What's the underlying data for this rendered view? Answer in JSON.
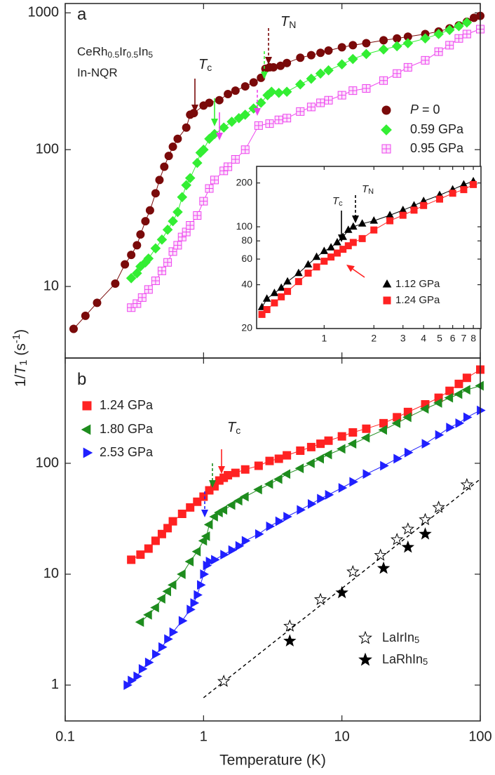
{
  "chart_data": [
    {
      "type": "scatter",
      "xscale": "log",
      "yscale": "log",
      "xlim": [
        0.1,
        100
      ],
      "ylim": [
        3,
        1170
      ],
      "xticks": [
        0.1,
        1,
        10,
        100
      ],
      "yticks": [
        10,
        100,
        1000
      ],
      "ylabel": [
        {
          "text": "1/"
        },
        {
          "text": "T",
          "style": "italic"
        },
        {
          "text": "1",
          "style": "sub"
        },
        {
          "text": " (s"
        },
        {
          "text": "-1",
          "style": "sup"
        },
        {
          "text": ")"
        }
      ],
      "annotations": [
        [
          {
            "text": "a"
          }
        ],
        [
          {
            "text": "CeRh"
          },
          {
            "text": "0.5",
            "style": "sub"
          },
          {
            "text": "Ir"
          },
          {
            "text": "0.5",
            "style": "sub"
          },
          {
            "text": "In"
          },
          {
            "text": "5",
            "style": "sub"
          }
        ],
        [
          {
            "text": "In-NQR"
          }
        ],
        [
          {
            "text": "T",
            "style": "italic"
          },
          {
            "text": "c",
            "style": "sub"
          }
        ],
        [
          {
            "text": "T",
            "style": "italic"
          },
          {
            "text": "N",
            "style": "sub"
          }
        ]
      ],
      "series": [
        {
          "name": [
            {
              "text": "P",
              "style": "italic"
            },
            {
              "text": " = 0"
            }
          ],
          "color": "#7a0a0a",
          "marker": "circle",
          "line": true,
          "x": [
            0.115,
            0.14,
            0.17,
            0.23,
            0.27,
            0.3,
            0.33,
            0.35,
            0.38,
            0.41,
            0.45,
            0.48,
            0.52,
            0.56,
            0.6,
            0.65,
            0.75,
            0.8,
            0.85,
            1.0,
            1.1,
            1.3,
            1.5,
            1.7,
            2.0,
            2.3,
            2.6,
            2.8,
            3.0,
            3.2,
            3.6,
            4,
            5,
            6,
            7,
            8,
            10,
            12,
            15,
            20,
            25,
            30,
            40,
            50,
            60,
            70,
            80,
            90,
            100
          ],
          "values": [
            4.9,
            6.1,
            7.6,
            10.5,
            14.5,
            17,
            20,
            24,
            30,
            36,
            48,
            60,
            75,
            90,
            105,
            120,
            145,
            180,
            185,
            210,
            220,
            230,
            255,
            270,
            290,
            310,
            335,
            390,
            400,
            400,
            410,
            430,
            470,
            490,
            510,
            530,
            560,
            580,
            600,
            630,
            650,
            670,
            700,
            730,
            770,
            810,
            860,
            920,
            950
          ]
        },
        {
          "name": "0.59 GPa",
          "color": "#33ee33",
          "marker": "diamond",
          "line": true,
          "x": [
            0.3,
            0.33,
            0.35,
            0.38,
            0.4,
            0.45,
            0.5,
            0.55,
            0.6,
            0.65,
            0.7,
            0.75,
            0.8,
            0.9,
            0.95,
            1.0,
            1.1,
            1.2,
            1.4,
            1.6,
            1.8,
            2.0,
            2.3,
            2.6,
            2.9,
            3.1,
            3.5,
            4,
            5,
            6,
            7,
            8,
            10,
            12,
            15,
            20,
            25,
            30,
            40,
            50,
            60,
            70,
            80
          ],
          "values": [
            11.5,
            12.5,
            14,
            15,
            16,
            19,
            22,
            26,
            30,
            35,
            45,
            55,
            62,
            80,
            95,
            100,
            120,
            130,
            145,
            160,
            170,
            180,
            200,
            220,
            250,
            265,
            260,
            265,
            300,
            330,
            360,
            380,
            420,
            460,
            500,
            540,
            570,
            600,
            650,
            700,
            750,
            800,
            850
          ]
        },
        {
          "name": "0.95 GPa",
          "color": "#ee44ee",
          "marker": "square-cross",
          "line": true,
          "x": [
            0.3,
            0.33,
            0.36,
            0.4,
            0.45,
            0.5,
            0.55,
            0.6,
            0.65,
            0.7,
            0.75,
            0.8,
            0.9,
            1.0,
            1.1,
            1.2,
            1.4,
            1.5,
            1.7,
            2.0,
            2.5,
            3,
            3.5,
            4,
            5,
            6,
            7,
            8,
            10,
            12,
            15,
            20,
            25,
            30,
            40,
            50,
            60,
            70,
            80,
            100
          ],
          "values": [
            7,
            7.5,
            8.3,
            9.5,
            11,
            13,
            15,
            18,
            20,
            23,
            25,
            28,
            33,
            42,
            52,
            60,
            70,
            75,
            85,
            100,
            150,
            155,
            165,
            170,
            190,
            205,
            220,
            230,
            250,
            270,
            280,
            320,
            360,
            400,
            450,
            520,
            580,
            650,
            700,
            760
          ]
        }
      ]
    },
    {
      "type": "scatter",
      "xscale": "log",
      "yscale": "log",
      "xlim": [
        0.39,
        8.9
      ],
      "ylim": [
        20,
        260
      ],
      "xticks": [
        1,
        2,
        3,
        4,
        5,
        6,
        7,
        8
      ],
      "yticks": [
        20,
        40,
        60,
        80,
        100,
        200
      ],
      "annotations": [
        [
          {
            "text": "T",
            "style": "italic"
          },
          {
            "text": "c",
            "style": "sub"
          }
        ],
        [
          {
            "text": "T",
            "style": "italic"
          },
          {
            "text": "N",
            "style": "sub"
          }
        ]
      ],
      "series": [
        {
          "name": "1.12 GPa",
          "color": "#000000",
          "marker": "triangle-up",
          "line": true,
          "x": [
            0.42,
            0.45,
            0.5,
            0.55,
            0.6,
            0.7,
            0.8,
            0.9,
            1.0,
            1.1,
            1.2,
            1.3,
            1.4,
            1.5,
            1.7,
            2,
            2.5,
            3,
            3.5,
            4,
            5,
            6,
            7,
            8
          ],
          "values": [
            28,
            32,
            35,
            38,
            42,
            48,
            55,
            62,
            68,
            72,
            78,
            85,
            95,
            100,
            105,
            110,
            120,
            130,
            140,
            150,
            165,
            180,
            195,
            205
          ]
        },
        {
          "name": "1.24 GPa",
          "color": "#ff2222",
          "marker": "square",
          "line": true,
          "x": [
            0.42,
            0.45,
            0.5,
            0.55,
            0.6,
            0.7,
            0.8,
            0.9,
            1.0,
            1.1,
            1.2,
            1.3,
            1.4,
            1.5,
            1.7,
            2,
            2.5,
            3,
            3.5,
            4,
            5,
            6,
            7,
            8
          ],
          "values": [
            25,
            27,
            30,
            33,
            36,
            42,
            48,
            53,
            58,
            62,
            66,
            70,
            74,
            78,
            83,
            95,
            110,
            120,
            130,
            140,
            155,
            170,
            180,
            195
          ]
        }
      ]
    },
    {
      "type": "scatter",
      "xscale": "log",
      "yscale": "log",
      "xlim": [
        0.1,
        100
      ],
      "ylim": [
        0.475,
        890
      ],
      "xticks": [
        0.1,
        1,
        10,
        100
      ],
      "yticks": [
        1,
        10,
        100
      ],
      "xlabel": "Temperature (K)",
      "annotations": [
        [
          {
            "text": "b"
          }
        ],
        [
          {
            "text": "T",
            "style": "italic"
          },
          {
            "text": "c",
            "style": "sub"
          }
        ]
      ],
      "series": [
        {
          "name": "1.24 GPa",
          "color": "#ff2222",
          "marker": "square",
          "line": true,
          "x": [
            0.3,
            0.35,
            0.4,
            0.45,
            0.5,
            0.55,
            0.6,
            0.7,
            0.8,
            0.9,
            1.0,
            1.1,
            1.2,
            1.3,
            1.4,
            1.5,
            1.7,
            2,
            2.5,
            3,
            3.5,
            4,
            5,
            6,
            7,
            8,
            10,
            12,
            15,
            20,
            25,
            30,
            40,
            50,
            60,
            70,
            80,
            100
          ],
          "values": [
            13.5,
            15,
            17,
            20,
            23,
            26,
            30,
            35,
            40,
            45,
            50,
            57,
            62,
            70,
            74,
            78,
            82,
            88,
            95,
            105,
            110,
            118,
            130,
            140,
            150,
            160,
            175,
            190,
            205,
            230,
            260,
            290,
            340,
            390,
            450,
            520,
            590,
            700
          ]
        },
        {
          "name": "1.80 GPa",
          "color": "#1e8c1e",
          "marker": "triangle-left",
          "line": true,
          "x": [
            0.35,
            0.4,
            0.45,
            0.5,
            0.55,
            0.6,
            0.7,
            0.8,
            0.9,
            1.0,
            1.05,
            1.1,
            1.2,
            1.3,
            1.4,
            1.6,
            1.8,
            2,
            2.5,
            3,
            3.5,
            4,
            5,
            6,
            7,
            8,
            10,
            12,
            15,
            20,
            25,
            30,
            40,
            50,
            60,
            70,
            80,
            100
          ],
          "values": [
            3.7,
            4.3,
            5,
            6,
            7,
            8,
            10,
            13,
            16,
            20,
            22,
            28,
            33,
            36,
            38,
            42,
            46,
            50,
            58,
            65,
            72,
            80,
            90,
            100,
            110,
            120,
            135,
            150,
            170,
            200,
            230,
            260,
            310,
            350,
            390,
            420,
            460,
            500
          ]
        },
        {
          "name": "2.53 GPa",
          "color": "#2020ff",
          "marker": "triangle-right",
          "line": true,
          "x": [
            0.28,
            0.3,
            0.33,
            0.36,
            0.4,
            0.45,
            0.5,
            0.55,
            0.6,
            0.7,
            0.8,
            0.85,
            0.9,
            0.95,
            1.0,
            1.05,
            1.1,
            1.2,
            1.4,
            1.6,
            1.8,
            2,
            2.5,
            3,
            3.5,
            4,
            5,
            6,
            7,
            8,
            10,
            12,
            15,
            20,
            25,
            30,
            40,
            50,
            60,
            70,
            80,
            100
          ],
          "values": [
            1.0,
            1.1,
            1.2,
            1.4,
            1.6,
            1.9,
            2.2,
            2.6,
            3.0,
            3.8,
            4.8,
            5.5,
            6.5,
            8,
            10,
            12,
            13,
            13.5,
            15,
            16.5,
            18,
            20,
            23,
            27,
            30,
            33,
            38,
            43,
            48,
            52,
            60,
            68,
            80,
            95,
            110,
            125,
            150,
            180,
            210,
            230,
            260,
            300
          ]
        },
        {
          "name": [
            {
              "text": "LaIrIn"
            },
            {
              "text": "5",
              "style": "sub"
            }
          ],
          "color": "#000000",
          "marker": "star-open",
          "line": false,
          "x": [
            1.4,
            4.2,
            7,
            12,
            19,
            25,
            30,
            40,
            50,
            80
          ],
          "values": [
            1.08,
            3.4,
            5.9,
            10.5,
            14.8,
            20.5,
            25.5,
            31,
            40,
            64
          ]
        },
        {
          "name": [
            {
              "text": "LaRhIn"
            },
            {
              "text": "5",
              "style": "sub"
            }
          ],
          "color": "#000000",
          "marker": "star",
          "line": false,
          "x": [
            4.2,
            10,
            20,
            30,
            40
          ],
          "values": [
            2.5,
            6.8,
            11.3,
            17.5,
            23
          ]
        }
      ],
      "fit_lines": [
        {
          "x": [
            1,
            100
          ],
          "values": [
            0.77,
            72
          ],
          "color": "#000000",
          "dashed": true
        }
      ]
    }
  ]
}
